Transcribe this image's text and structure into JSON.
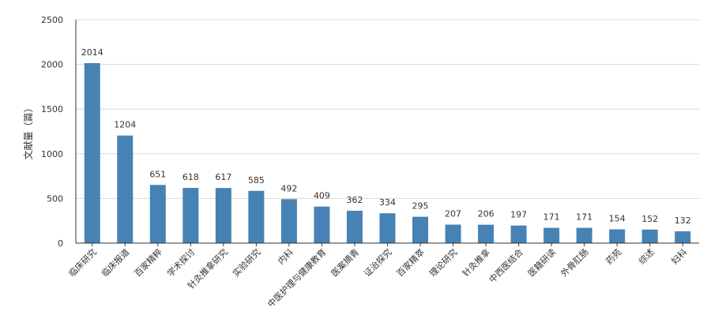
{
  "chart_data": {
    "type": "bar",
    "ylabel": "文献量（篇）",
    "ylim": [
      0,
      2500
    ],
    "yticks": [
      0,
      500,
      1000,
      1500,
      2000,
      2500
    ],
    "grid": true,
    "color": "#4682B4",
    "categories": [
      "临床研究",
      "临床报道",
      "百家精粹",
      "学术探讨",
      "针灸推拿研究",
      "实验研究",
      "内科",
      "中医护理与健康教育",
      "医案摘青",
      "证治探究",
      "百家精萃",
      "理论研究",
      "针灸推拿",
      "中西医结合",
      "医籍研读",
      "外骨肛肠",
      "药苑",
      "综述",
      "妇科"
    ],
    "values": [
      2014,
      1204,
      651,
      618,
      617,
      585,
      492,
      409,
      362,
      334,
      295,
      207,
      206,
      197,
      171,
      171,
      154,
      152,
      132
    ]
  }
}
